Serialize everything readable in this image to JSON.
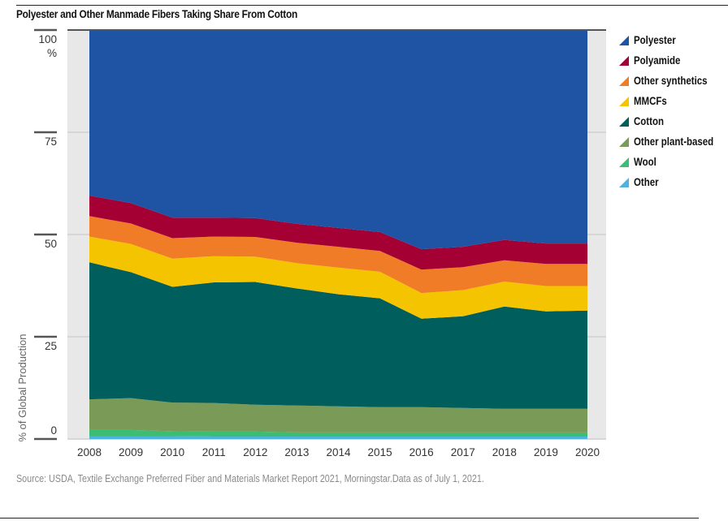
{
  "chart_data": {
    "type": "area",
    "stacked": true,
    "title": "Polyester and Other Manmade Fibers Taking Share From Cotton",
    "xlabel": "",
    "ylabel": "% of Global Production",
    "y_unit_label": "%",
    "ylim": [
      0,
      100
    ],
    "yticks": [
      0,
      25,
      50,
      75,
      100
    ],
    "x": [
      "2008",
      "2009",
      "2010",
      "2011",
      "2012",
      "2013",
      "2014",
      "2015",
      "2016",
      "2017",
      "2018",
      "2019",
      "2020"
    ],
    "series": [
      {
        "name": "Other",
        "color": "#4fb3df",
        "values": [
          0.7,
          0.7,
          0.7,
          0.6,
          0.6,
          0.6,
          0.6,
          0.6,
          0.6,
          0.6,
          0.6,
          0.6,
          0.6
        ]
      },
      {
        "name": "Wool",
        "color": "#3dbd73",
        "values": [
          1.5,
          1.5,
          1.2,
          1.2,
          1.2,
          1.0,
          1.0,
          1.0,
          1.0,
          1.0,
          1.0,
          1.0,
          1.0
        ]
      },
      {
        "name": "Other plant-based",
        "color": "#7a9a57",
        "values": [
          7.5,
          7.8,
          7.0,
          7.0,
          6.6,
          6.6,
          6.4,
          6.2,
          6.2,
          6.0,
          5.8,
          5.8,
          5.8
        ]
      },
      {
        "name": "Cotton",
        "color": "#005e5d",
        "values": [
          33.5,
          30.8,
          28.3,
          29.5,
          30.0,
          28.6,
          27.4,
          26.6,
          21.6,
          22.4,
          25.0,
          23.8,
          24.0
        ]
      },
      {
        "name": "MMCFs",
        "color": "#f5c400",
        "values": [
          6.3,
          6.9,
          6.9,
          6.4,
          6.2,
          6.2,
          6.5,
          6.5,
          6.3,
          6.4,
          6.1,
          6.2,
          6.0
        ]
      },
      {
        "name": "Other synthetics",
        "color": "#f07c28",
        "values": [
          5.0,
          5.0,
          5.0,
          4.8,
          4.8,
          5.0,
          5.1,
          5.1,
          5.7,
          5.6,
          5.2,
          5.4,
          5.4
        ]
      },
      {
        "name": "Polyamide",
        "color": "#a50034",
        "values": [
          5.0,
          5.0,
          5.0,
          4.6,
          4.6,
          4.6,
          4.6,
          4.6,
          5.0,
          5.0,
          5.0,
          5.0,
          5.0
        ]
      },
      {
        "name": "Polyester",
        "color": "#1f53a4",
        "values": [
          40.5,
          42.3,
          45.9,
          45.9,
          46.0,
          47.4,
          48.4,
          49.4,
          53.6,
          53.0,
          51.3,
          52.2,
          52.2
        ]
      }
    ],
    "legend": {
      "position": "right",
      "order": [
        "Polyester",
        "Polyamide",
        "Other synthetics",
        "MMCFs",
        "Cotton",
        "Other plant-based",
        "Wool",
        "Other"
      ]
    },
    "grid": false,
    "source": "Source: USDA, Textile Exchange Preferred Fiber and Materials Market Report 2021, Morningstar.Data as of July 1, 2021."
  }
}
